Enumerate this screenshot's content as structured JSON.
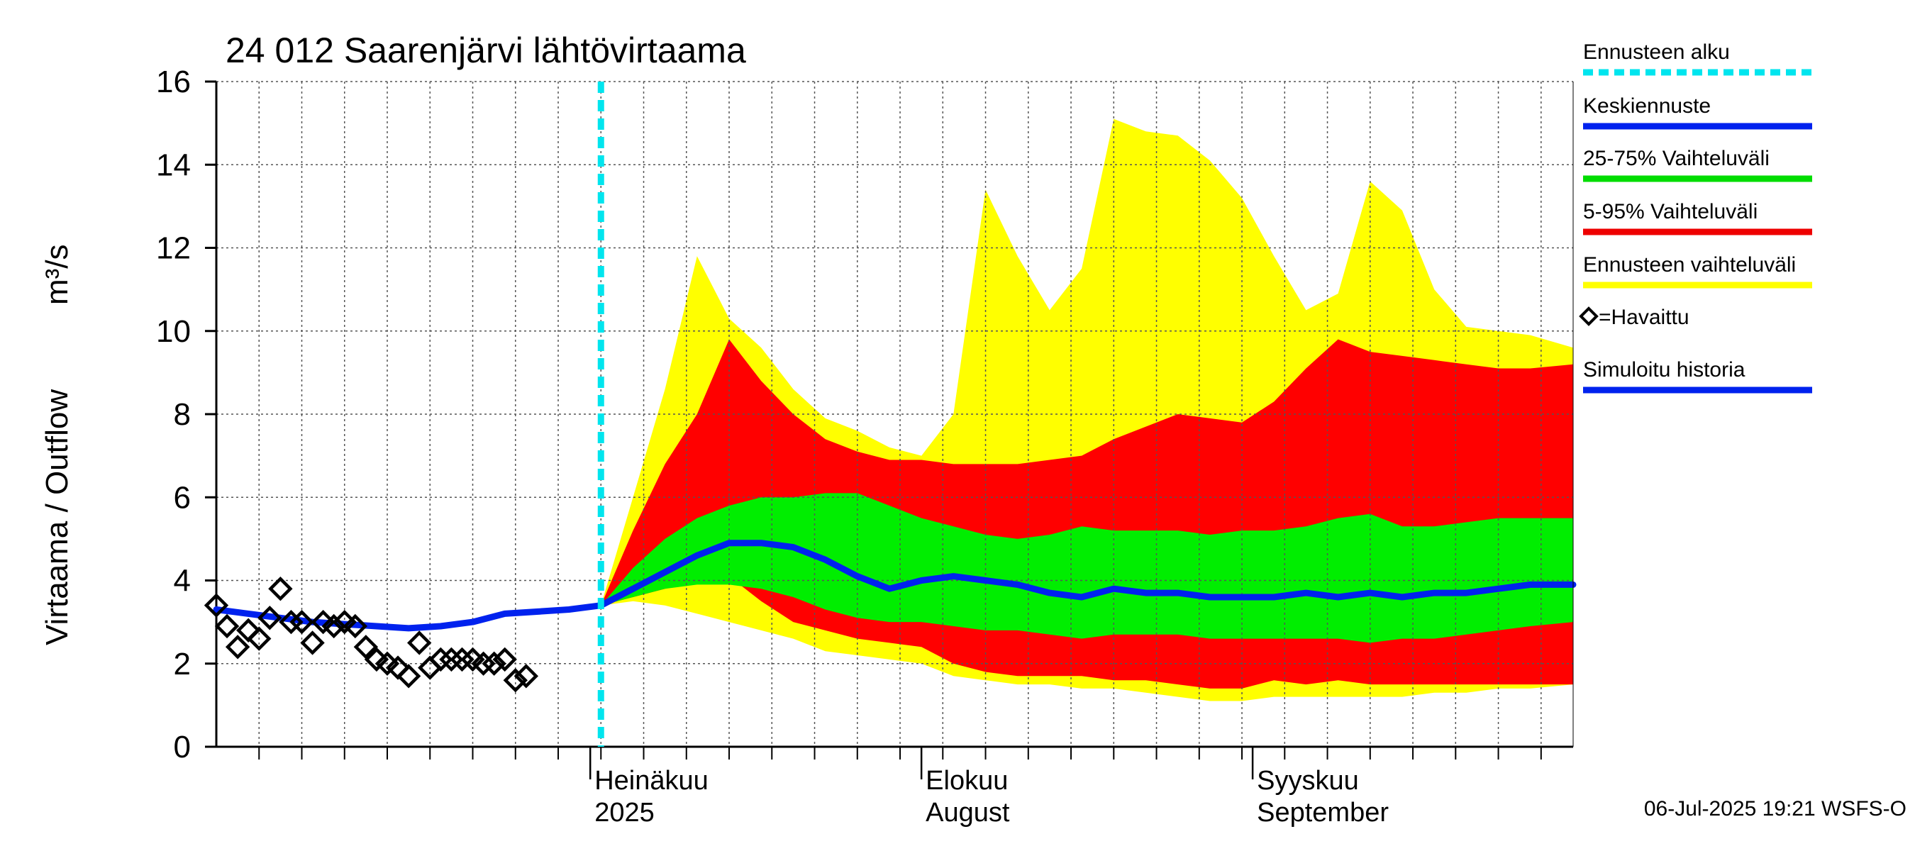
{
  "chart_data": {
    "type": "area",
    "title": "24 012 Saarenjärvi lähtövirtaama",
    "ylabel": "Virtaama / Outflow",
    "yunit": "m³/s",
    "ylim": [
      0,
      16
    ],
    "yticks": [
      0,
      2,
      4,
      6,
      8,
      10,
      12,
      14,
      16
    ],
    "xlim": [
      "2025-05-27",
      "2025-10-01"
    ],
    "grid": true,
    "month_labels": [
      {
        "date": "2025-07-01",
        "line1": "Heinäkuu",
        "line2": "2025"
      },
      {
        "date": "2025-08-01",
        "line1": "Elokuu",
        "line2": "August"
      },
      {
        "date": "2025-09-01",
        "line1": "Syyskuu",
        "line2": "September"
      }
    ],
    "forecast_start": "2025-07-02",
    "legend": [
      {
        "label": "Ennusteen alku",
        "color": "#00e5ee",
        "style": "dashed"
      },
      {
        "label": "Keskiennuste",
        "color": "#0022ee",
        "style": "line"
      },
      {
        "label": "25-75% Vaihteluväli",
        "color": "#00dd00",
        "style": "line"
      },
      {
        "label": "5-95% Vaihteluväli",
        "color": "#ee0000",
        "style": "line"
      },
      {
        "label": "Ennusteen vaihteluväli",
        "color": "#ffff00",
        "style": "line"
      },
      {
        "label": "=Havaittu",
        "color": "#000000",
        "style": "marker"
      },
      {
        "label": "Simuloitu historia",
        "color": "#0022ee",
        "style": "line"
      }
    ],
    "x": [
      "2025-07-02",
      "2025-07-05",
      "2025-07-08",
      "2025-07-11",
      "2025-07-14",
      "2025-07-17",
      "2025-07-20",
      "2025-07-23",
      "2025-07-26",
      "2025-07-29",
      "2025-08-01",
      "2025-08-04",
      "2025-08-07",
      "2025-08-10",
      "2025-08-13",
      "2025-08-16",
      "2025-08-19",
      "2025-08-22",
      "2025-08-25",
      "2025-08-28",
      "2025-08-31",
      "2025-09-03",
      "2025-09-06",
      "2025-09-09",
      "2025-09-12",
      "2025-09-15",
      "2025-09-18",
      "2025-09-21",
      "2025-09-24",
      "2025-09-27",
      "2025-10-01"
    ],
    "series": [
      {
        "name": "Ennusteen vaihteluväli",
        "band": true,
        "upper": [
          3.4,
          6.0,
          8.6,
          11.8,
          10.3,
          9.6,
          8.6,
          7.9,
          7.6,
          7.2,
          7.0,
          8.0,
          13.4,
          11.8,
          10.5,
          11.5,
          15.1,
          14.8,
          14.7,
          14.1,
          13.2,
          11.8,
          10.5,
          10.9,
          13.6,
          12.9,
          11.0,
          10.1,
          10.0,
          9.9,
          9.6
        ],
        "lower": [
          3.4,
          3.5,
          3.4,
          3.2,
          3.0,
          2.8,
          2.6,
          2.3,
          2.2,
          2.1,
          2.0,
          1.7,
          1.6,
          1.5,
          1.5,
          1.4,
          1.4,
          1.3,
          1.2,
          1.1,
          1.1,
          1.2,
          1.2,
          1.2,
          1.2,
          1.2,
          1.3,
          1.3,
          1.4,
          1.4,
          1.5
        ]
      },
      {
        "name": "5-95% Vaihteluväli",
        "band": true,
        "upper": [
          3.4,
          5.2,
          6.8,
          8.0,
          9.8,
          8.8,
          8.0,
          7.4,
          7.1,
          6.9,
          6.9,
          6.8,
          6.8,
          6.8,
          6.9,
          7.0,
          7.4,
          7.7,
          8.0,
          7.9,
          7.8,
          8.3,
          9.1,
          9.8,
          9.5,
          9.4,
          9.3,
          9.2,
          9.1,
          9.1,
          9.2
        ],
        "lower": [
          3.4,
          3.6,
          3.8,
          4.0,
          4.1,
          3.5,
          3.0,
          2.8,
          2.6,
          2.5,
          2.4,
          2.0,
          1.8,
          1.7,
          1.7,
          1.7,
          1.6,
          1.6,
          1.5,
          1.4,
          1.4,
          1.6,
          1.5,
          1.6,
          1.5,
          1.5,
          1.5,
          1.5,
          1.5,
          1.5,
          1.5
        ]
      },
      {
        "name": "25-75% Vaihteluväli",
        "band": true,
        "upper": [
          3.4,
          4.3,
          5.0,
          5.5,
          5.8,
          6.0,
          6.0,
          6.1,
          6.1,
          5.8,
          5.5,
          5.3,
          5.1,
          5.0,
          5.1,
          5.3,
          5.2,
          5.2,
          5.2,
          5.1,
          5.2,
          5.2,
          5.3,
          5.5,
          5.6,
          5.3,
          5.3,
          5.4,
          5.5,
          5.5,
          5.5
        ],
        "lower": [
          3.4,
          3.6,
          3.8,
          3.9,
          3.9,
          3.8,
          3.6,
          3.3,
          3.1,
          3.0,
          3.0,
          2.9,
          2.8,
          2.8,
          2.7,
          2.6,
          2.7,
          2.7,
          2.7,
          2.6,
          2.6,
          2.6,
          2.6,
          2.6,
          2.5,
          2.6,
          2.6,
          2.7,
          2.8,
          2.9,
          3.0
        ]
      },
      {
        "name": "Keskiennuste",
        "values": [
          3.4,
          3.8,
          4.2,
          4.6,
          4.9,
          4.9,
          4.8,
          4.5,
          4.1,
          3.8,
          4.0,
          4.1,
          4.0,
          3.9,
          3.7,
          3.6,
          3.8,
          3.7,
          3.7,
          3.6,
          3.6,
          3.6,
          3.7,
          3.6,
          3.7,
          3.6,
          3.7,
          3.7,
          3.8,
          3.9,
          3.9
        ]
      },
      {
        "name": "Simuloitu historia",
        "x": [
          "2025-05-27",
          "2025-05-30",
          "2025-06-02",
          "2025-06-05",
          "2025-06-08",
          "2025-06-11",
          "2025-06-14",
          "2025-06-17",
          "2025-06-20",
          "2025-06-23",
          "2025-06-26",
          "2025-06-29",
          "2025-07-02"
        ],
        "values": [
          3.3,
          3.2,
          3.1,
          3.0,
          2.95,
          2.9,
          2.85,
          2.9,
          3.0,
          3.2,
          3.25,
          3.3,
          3.4
        ]
      },
      {
        "name": "=Havaittu",
        "marker": "diamond",
        "x": [
          "2025-05-27",
          "2025-05-28",
          "2025-05-29",
          "2025-05-30",
          "2025-05-31",
          "2025-06-01",
          "2025-06-02",
          "2025-06-03",
          "2025-06-04",
          "2025-06-05",
          "2025-06-06",
          "2025-06-07",
          "2025-06-08",
          "2025-06-09",
          "2025-06-10",
          "2025-06-11",
          "2025-06-12",
          "2025-06-13",
          "2025-06-14",
          "2025-06-15",
          "2025-06-16",
          "2025-06-17",
          "2025-06-18",
          "2025-06-19",
          "2025-06-20",
          "2025-06-21",
          "2025-06-22",
          "2025-06-23",
          "2025-06-24",
          "2025-06-25",
          "2025-06-26",
          "2025-06-27",
          "2025-06-28",
          "2025-06-29",
          "2025-06-30"
        ],
        "values": [
          3.4,
          2.9,
          2.4,
          2.8,
          2.6,
          3.1,
          3.8,
          3.0,
          3.0,
          2.5,
          3.0,
          2.9,
          3.0,
          2.9,
          2.4,
          2.1,
          2.0,
          1.9,
          1.7,
          2.5,
          1.9,
          2.1,
          2.1,
          2.1,
          2.1,
          2.0,
          2.0,
          2.1,
          1.6,
          1.7,
          null,
          null,
          null,
          null,
          null
        ]
      }
    ]
  },
  "footer": "06-Jul-2025 19:21 WSFS-O"
}
